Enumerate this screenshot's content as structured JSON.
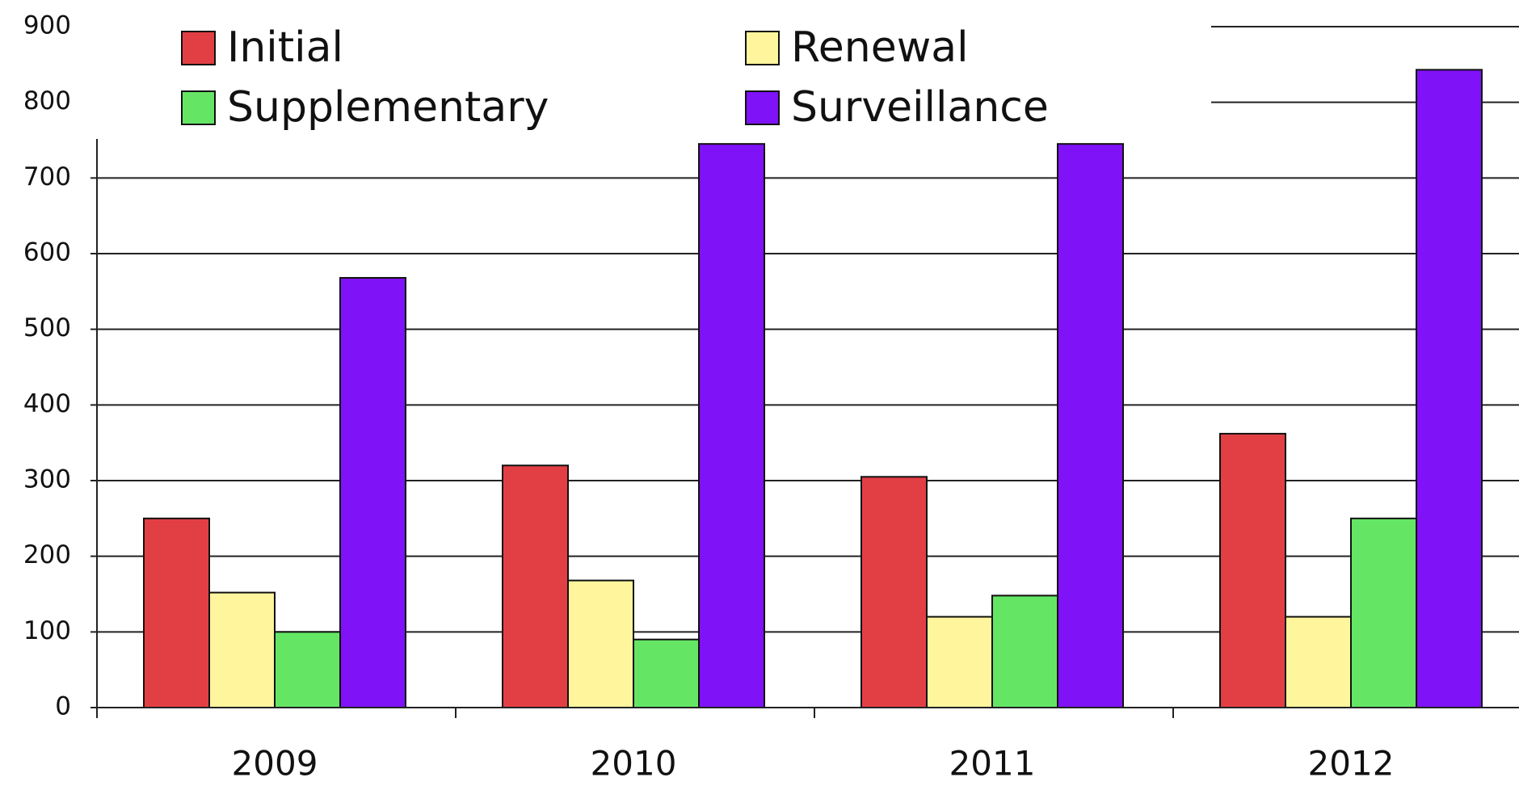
{
  "chart_data": {
    "type": "bar",
    "categories": [
      "2009",
      "2010",
      "2011",
      "2012"
    ],
    "series": [
      {
        "name": "Initial",
        "color": "#e23f44",
        "values": [
          250,
          320,
          305,
          362
        ]
      },
      {
        "name": "Renewal",
        "color": "#fff59c",
        "values": [
          152,
          168,
          120,
          120
        ]
      },
      {
        "name": "Supplementary",
        "color": "#64e664",
        "values": [
          100,
          90,
          148,
          250
        ]
      },
      {
        "name": "Surveillance",
        "color": "#7f12f6",
        "values": [
          568,
          745,
          745,
          843
        ]
      }
    ],
    "ylim": [
      0,
      900
    ],
    "yticks": [
      0,
      100,
      200,
      300,
      400,
      500,
      600,
      700,
      800,
      900
    ],
    "grid": true,
    "legend": "top"
  }
}
